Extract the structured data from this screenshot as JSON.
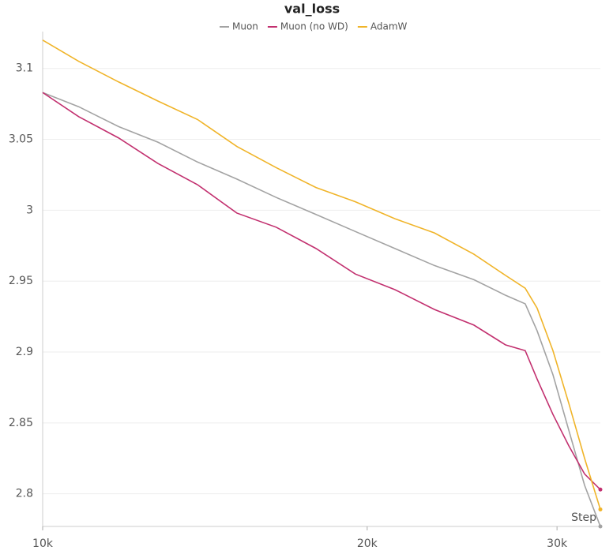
{
  "chart_data": {
    "type": "line",
    "title": "val_loss",
    "x_label": "Step",
    "x": [
      10000,
      10800,
      11760,
      12790,
      13920,
      15140,
      16470,
      17930,
      19500,
      21220,
      23090,
      25120,
      26880,
      28030,
      28750,
      29740,
      30760,
      31820,
      32910
    ],
    "series": [
      {
        "name": "Muon",
        "color": "#a3a3a3",
        "values": [
          3.083,
          3.073,
          3.059,
          3.048,
          3.034,
          3.022,
          3.009,
          2.997,
          2.985,
          2.973,
          2.961,
          2.951,
          2.94,
          2.934,
          2.915,
          2.884,
          2.845,
          2.806,
          2.777
        ]
      },
      {
        "name": "Muon (no WD)",
        "color": "#c2306f",
        "values": [
          3.083,
          3.066,
          3.051,
          3.033,
          3.018,
          2.998,
          2.988,
          2.973,
          2.955,
          2.944,
          2.93,
          2.919,
          2.905,
          2.901,
          2.881,
          2.856,
          2.834,
          2.814,
          2.803
        ]
      },
      {
        "name": "AdamW",
        "color": "#f0b429",
        "values": [
          3.12,
          3.105,
          3.0905,
          3.077,
          3.064,
          3.045,
          3.03,
          3.016,
          3.006,
          2.994,
          2.984,
          2.969,
          2.954,
          2.945,
          2.931,
          2.901,
          2.864,
          2.825,
          2.789
        ]
      }
    ],
    "log_x": true,
    "xlim": [
      10000,
      32910
    ],
    "xticks": [
      {
        "value": 10000,
        "label": "10k"
      },
      {
        "value": 20000,
        "label": "20k"
      },
      {
        "value": 30000,
        "label": "30k"
      }
    ],
    "ylim": [
      2.777,
      3.126
    ],
    "yticks": [
      2.8,
      2.85,
      2.9,
      2.95,
      3,
      3.05,
      3.1
    ],
    "grid": true
  }
}
